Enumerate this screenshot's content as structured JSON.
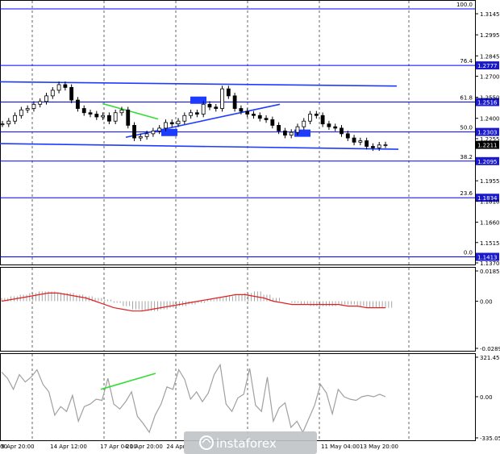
{
  "chart_data": [
    {
      "type": "candlestick",
      "panel": "price",
      "instrument_note": "",
      "y_ticks": [
        "1.3145",
        "1.2995",
        "1.2845",
        "1.2700",
        "1.2550",
        "1.2400",
        "1.2255",
        "1.1955",
        "1.1810",
        "1.1660",
        "1.1515",
        "1.1370"
      ],
      "ylim": [
        1.137,
        1.322
      ],
      "current_price": "1.2211",
      "fibonacci": [
        {
          "level": "100.0",
          "price": "",
          "value": 1.318
        },
        {
          "level": "76.4",
          "price": "1.2777",
          "value": 1.2777
        },
        {
          "level": "61.8",
          "price": "1.2516",
          "value": 1.2516
        },
        {
          "level": "50.0",
          "price": "1.2303",
          "value": 1.2303
        },
        {
          "level": "38.2",
          "price": "1.2095",
          "value": 1.2095
        },
        {
          "level": "23.6",
          "price": "1.1834",
          "value": 1.1834
        },
        {
          "level": "0.0",
          "price": "1.1413",
          "value": 1.1413
        }
      ],
      "close_series": [
        1.236,
        1.238,
        1.242,
        1.246,
        1.247,
        1.25,
        1.252,
        1.256,
        1.26,
        1.264,
        1.262,
        1.253,
        1.247,
        1.244,
        1.243,
        1.241,
        1.242,
        1.238,
        1.244,
        1.246,
        1.235,
        1.226,
        1.227,
        1.229,
        1.231,
        1.233,
        1.237,
        1.236,
        1.238,
        1.242,
        1.244,
        1.243,
        1.25,
        1.248,
        1.247,
        1.261,
        1.256,
        1.247,
        1.245,
        1.243,
        1.242,
        1.24,
        1.239,
        1.235,
        1.231,
        1.228,
        1.23,
        1.234,
        1.238,
        1.243,
        1.242,
        1.236,
        1.234,
        1.233,
        1.229,
        1.226,
        1.223,
        1.224,
        1.22,
        1.219,
        1.221,
        1.2211
      ]
    },
    {
      "type": "histogram+line",
      "panel": "macd",
      "y_ticks": [
        "0.01856",
        "0.00",
        "-0.02892"
      ],
      "ylim": [
        -0.02892,
        0.01856
      ],
      "histogram": [
        0.002,
        0.003,
        0.004,
        0.005,
        0.006,
        0.006,
        0.005,
        0.005,
        0.004,
        0.003,
        0.002,
        0.001,
        -0.001,
        -0.003,
        -0.005,
        -0.006,
        -0.006,
        -0.005,
        -0.004,
        -0.003,
        -0.002,
        -0.001,
        0.001,
        0.002,
        0.003,
        0.004,
        0.005,
        0.006,
        0.004,
        0.002,
        0.0,
        -0.001,
        -0.002,
        -0.003,
        -0.003,
        -0.003,
        -0.002,
        -0.002,
        -0.003,
        -0.004,
        -0.004,
        -0.004
      ],
      "signal": [
        0.0,
        0.001,
        0.002,
        0.003,
        0.004,
        0.005,
        0.005,
        0.004,
        0.003,
        0.002,
        0.0,
        -0.002,
        -0.004,
        -0.005,
        -0.006,
        -0.006,
        -0.005,
        -0.004,
        -0.003,
        -0.002,
        -0.001,
        0.0,
        0.001,
        0.002,
        0.003,
        0.004,
        0.004,
        0.003,
        0.002,
        0.0,
        -0.001,
        -0.002,
        -0.002,
        -0.002,
        -0.002,
        -0.002,
        -0.002,
        -0.003,
        -0.003,
        -0.004,
        -0.004,
        -0.004
      ]
    },
    {
      "type": "line",
      "panel": "oscillator",
      "y_ticks": [
        "321.4533",
        "0.00",
        "-335.0506"
      ],
      "ylim": [
        -335.0506,
        321.4533
      ],
      "values": [
        200,
        150,
        60,
        180,
        120,
        160,
        220,
        100,
        40,
        -150,
        -80,
        -120,
        10,
        -200,
        -80,
        -60,
        -20,
        -30,
        150,
        -60,
        -100,
        -40,
        40,
        -160,
        -220,
        -290,
        -150,
        -60,
        80,
        60,
        220,
        140,
        -20,
        40,
        -40,
        30,
        180,
        260,
        -60,
        -120,
        -10,
        20,
        230,
        -70,
        -120,
        160,
        -200,
        -90,
        -50,
        -250,
        -200,
        -290,
        -180,
        -70,
        100,
        30,
        -140,
        60,
        0,
        -20,
        -30,
        0,
        10,
        0,
        20,
        0
      ],
      "divergence_note": ""
    }
  ],
  "x_ticks": [
    "9 Apr 20:00",
    "14 Apr 12:00",
    "17 Apr 04:00",
    "21 Apr 20:00",
    "24 Apr",
    "11 May 04:00",
    "13 May 20:00"
  ],
  "x_tick_first": "00",
  "watermark": "instaforex",
  "colors": {
    "fib_line": "#0000ff",
    "grid": "#000000",
    "trend_blue": "#1e3cff",
    "green_line": "#33dd33",
    "macd_signal": "#e02020",
    "hist": "#9a9a9a",
    "osc": "#a0a0a0",
    "price_box": "#000000",
    "fib_box": "#1a1acc"
  }
}
